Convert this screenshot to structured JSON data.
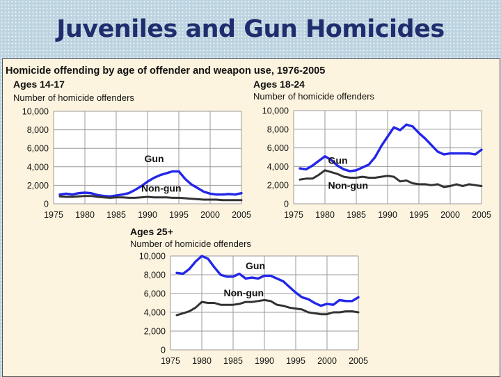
{
  "slide": {
    "title": "Juveniles and Gun Homicides"
  },
  "figure": {
    "title": "Homicide offending by age of offender and weapon use, 1976-2005"
  },
  "colors": {
    "gun": "#2326e8",
    "nongun": "#333333",
    "plot_bg": "#ffffff",
    "grid": "#9a9a9a",
    "panel_bg": "#fdf4df",
    "title": "#1f2d6e"
  },
  "chart_data": [
    {
      "type": "line",
      "title": "Ages 14-17",
      "ylabel": "Number of homicide offenders",
      "ylim": [
        0,
        10000
      ],
      "xlim": [
        1975,
        2005
      ],
      "yticks": [
        0,
        2000,
        4000,
        6000,
        8000,
        10000
      ],
      "ytick_labels": [
        "0",
        "2,000",
        "4,000",
        "6,000",
        "8,000",
        "10,000"
      ],
      "xticks": [
        1975,
        1980,
        1985,
        1990,
        1995,
        2000,
        2005
      ],
      "x": [
        1976,
        1977,
        1978,
        1979,
        1980,
        1981,
        1982,
        1983,
        1984,
        1985,
        1986,
        1987,
        1988,
        1989,
        1990,
        1991,
        1992,
        1993,
        1994,
        1995,
        1996,
        1997,
        1998,
        1999,
        2000,
        2001,
        2002,
        2003,
        2004,
        2005
      ],
      "series": [
        {
          "name": "Gun",
          "values": [
            1000,
            1100,
            1000,
            1150,
            1200,
            1150,
            950,
            850,
            800,
            900,
            1000,
            1150,
            1500,
            1900,
            2400,
            2800,
            3100,
            3300,
            3500,
            3500,
            2700,
            2100,
            1700,
            1300,
            1100,
            1000,
            1000,
            1050,
            1000,
            1150
          ]
        },
        {
          "name": "Non-gun",
          "values": [
            800,
            750,
            750,
            800,
            850,
            850,
            750,
            700,
            650,
            700,
            700,
            650,
            650,
            700,
            750,
            700,
            700,
            700,
            650,
            650,
            600,
            550,
            500,
            450,
            450,
            450,
            400,
            400,
            400,
            400
          ]
        }
      ],
      "grid": true
    },
    {
      "type": "line",
      "title": "Ages 18-24",
      "ylabel": "Number of homicide offenders",
      "ylim": [
        0,
        10000
      ],
      "xlim": [
        1975,
        2005
      ],
      "yticks": [
        0,
        2000,
        4000,
        6000,
        8000,
        10000
      ],
      "ytick_labels": [
        "0",
        "2,000",
        "4,000",
        "6,000",
        "8,000",
        "10,000"
      ],
      "xticks": [
        1975,
        1980,
        1985,
        1990,
        1995,
        2000,
        2005
      ],
      "x": [
        1976,
        1977,
        1978,
        1979,
        1980,
        1981,
        1982,
        1983,
        1984,
        1985,
        1986,
        1987,
        1988,
        1989,
        1990,
        1991,
        1992,
        1993,
        1994,
        1995,
        1996,
        1997,
        1998,
        1999,
        2000,
        2001,
        2002,
        2003,
        2004,
        2005
      ],
      "series": [
        {
          "name": "Gun",
          "values": [
            3800,
            3700,
            4100,
            4600,
            5100,
            4700,
            4100,
            3700,
            3500,
            3600,
            3900,
            4200,
            5000,
            6200,
            7200,
            8200,
            7900,
            8500,
            8300,
            7600,
            7000,
            6300,
            5600,
            5300,
            5400,
            5400,
            5400,
            5400,
            5300,
            5800
          ]
        },
        {
          "name": "Non-gun",
          "values": [
            2600,
            2700,
            2700,
            3100,
            3600,
            3400,
            3200,
            2900,
            2800,
            2800,
            2900,
            2800,
            2800,
            2900,
            3000,
            2900,
            2400,
            2500,
            2200,
            2100,
            2100,
            2000,
            2100,
            1800,
            1900,
            2100,
            1900,
            2100,
            2000,
            1900
          ]
        }
      ],
      "grid": true
    },
    {
      "type": "line",
      "title": "Ages 25+",
      "ylabel": "Number of homicide offenders",
      "ylim": [
        0,
        10000
      ],
      "xlim": [
        1975,
        2005
      ],
      "yticks": [
        0,
        2000,
        4000,
        6000,
        8000,
        10000
      ],
      "ytick_labels": [
        "0",
        "2,000",
        "4,000",
        "6,000",
        "8,000",
        "10,000"
      ],
      "xticks": [
        1975,
        1980,
        1985,
        1990,
        1995,
        2000,
        2005
      ],
      "x": [
        1976,
        1977,
        1978,
        1979,
        1980,
        1981,
        1982,
        1983,
        1984,
        1985,
        1986,
        1987,
        1988,
        1989,
        1990,
        1991,
        1992,
        1993,
        1994,
        1995,
        1996,
        1997,
        1998,
        1999,
        2000,
        2001,
        2002,
        2003,
        2004,
        2005
      ],
      "series": [
        {
          "name": "Gun",
          "values": [
            8200,
            8100,
            8600,
            9400,
            10000,
            9700,
            8800,
            8000,
            7800,
            7800,
            8100,
            7600,
            7700,
            7600,
            7900,
            7900,
            7600,
            7300,
            6700,
            6100,
            5600,
            5400,
            5000,
            4700,
            4900,
            4800,
            5300,
            5200,
            5200,
            5600
          ]
        },
        {
          "name": "Non-gun",
          "values": [
            3700,
            3900,
            4100,
            4500,
            5100,
            5000,
            5000,
            4800,
            4800,
            4800,
            4900,
            5100,
            5100,
            5200,
            5300,
            5200,
            4800,
            4700,
            4500,
            4400,
            4300,
            4000,
            3900,
            3800,
            3800,
            4000,
            4000,
            4100,
            4100,
            4000
          ]
        }
      ],
      "grid": true
    }
  ]
}
